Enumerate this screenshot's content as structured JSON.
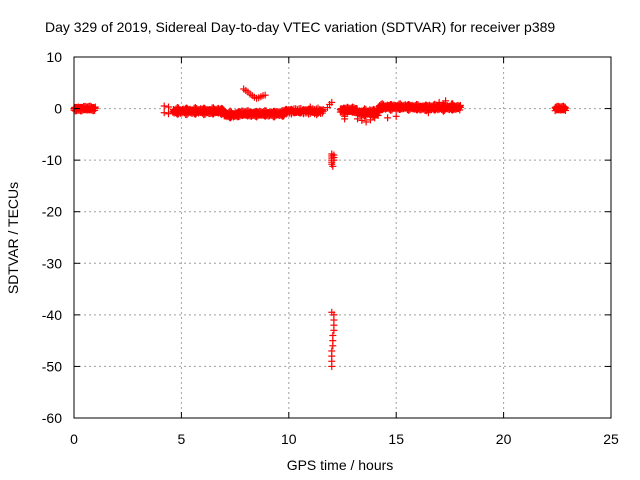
{
  "chart_data": {
    "type": "scatter",
    "title": "Day 329 of 2019, Sidereal Day-to-day VTEC variation (SDTVAR) for receiver p389",
    "xlabel": "GPS time / hours",
    "ylabel": "SDTVAR / TECUs",
    "xlim": [
      0,
      25
    ],
    "ylim": [
      -60,
      10
    ],
    "xticks": [
      0,
      5,
      10,
      15,
      20,
      25
    ],
    "yticks": [
      10,
      0,
      -10,
      -20,
      -30,
      -40,
      -50,
      -60
    ],
    "grid": true,
    "marker": "plus",
    "color": "#ff0000",
    "segments": [
      {
        "x0": 0.0,
        "x1": 1.0,
        "y": 0.0,
        "spread": 0.6,
        "step": 0.03
      },
      {
        "x0": 4.6,
        "x1": 7.0,
        "y": -0.5,
        "spread": 1.2,
        "step": 0.03
      },
      {
        "x0": 7.0,
        "x1": 7.6,
        "y": -1.2,
        "spread": 1.2,
        "step": 0.03
      },
      {
        "x0": 7.6,
        "x1": 9.8,
        "y": -1.0,
        "spread": 1.0,
        "step": 0.03
      },
      {
        "x0": 9.8,
        "x1": 11.6,
        "y": -0.5,
        "spread": 0.9,
        "step": 0.04
      },
      {
        "x0": 12.4,
        "x1": 13.2,
        "y": -0.3,
        "spread": 1.0,
        "step": 0.03
      },
      {
        "x0": 13.2,
        "x1": 14.2,
        "y": -0.8,
        "spread": 1.4,
        "step": 0.03
      },
      {
        "x0": 14.2,
        "x1": 15.8,
        "y": 0.3,
        "spread": 1.0,
        "step": 0.03
      },
      {
        "x0": 15.8,
        "x1": 18.0,
        "y": 0.2,
        "spread": 1.0,
        "step": 0.03
      },
      {
        "x0": 22.4,
        "x1": 22.9,
        "y": 0.0,
        "spread": 0.6,
        "step": 0.03
      }
    ],
    "points": [
      [
        4.2,
        0.5
      ],
      [
        4.2,
        -0.8
      ],
      [
        4.4,
        0.3
      ],
      [
        4.4,
        -1.0
      ],
      [
        7.9,
        3.8
      ],
      [
        8.0,
        3.5
      ],
      [
        8.1,
        3.2
      ],
      [
        8.2,
        2.8
      ],
      [
        8.3,
        2.5
      ],
      [
        8.4,
        2.2
      ],
      [
        8.5,
        2.0
      ],
      [
        8.6,
        2.1
      ],
      [
        8.7,
        2.3
      ],
      [
        8.8,
        2.5
      ],
      [
        8.9,
        2.6
      ],
      [
        11.0,
        0.3
      ],
      [
        11.1,
        -0.5
      ],
      [
        11.2,
        -1.0
      ],
      [
        11.3,
        -1.2
      ],
      [
        11.8,
        0.2
      ],
      [
        11.9,
        0.8
      ],
      [
        12.0,
        1.2
      ],
      [
        12.0,
        -8.8
      ],
      [
        12.0,
        -9.2
      ],
      [
        12.0,
        -9.6
      ],
      [
        12.0,
        -10.0
      ],
      [
        12.0,
        -10.4
      ],
      [
        12.0,
        -10.8
      ],
      [
        12.05,
        -11.2
      ],
      [
        12.1,
        -9.0
      ],
      [
        12.1,
        -9.5
      ],
      [
        12.1,
        -10.0
      ],
      [
        12.1,
        -40.0
      ],
      [
        12.1,
        -41.0
      ],
      [
        12.1,
        -42.0
      ],
      [
        12.1,
        -43.0
      ],
      [
        12.05,
        -44.0
      ],
      [
        12.05,
        -45.0
      ],
      [
        12.05,
        -46.0
      ],
      [
        12.0,
        -47.0
      ],
      [
        12.0,
        -48.0
      ],
      [
        12.0,
        -49.0
      ],
      [
        12.0,
        -50.0
      ],
      [
        12.0,
        -39.5
      ],
      [
        12.6,
        -1.5
      ],
      [
        12.6,
        -2.0
      ],
      [
        13.2,
        -2.0
      ],
      [
        13.4,
        -2.3
      ],
      [
        13.6,
        -2.6
      ],
      [
        13.8,
        -2.2
      ],
      [
        14.0,
        -1.8
      ],
      [
        14.6,
        -1.8
      ],
      [
        15.0,
        -1.5
      ],
      [
        16.5,
        -0.8
      ],
      [
        17.2,
        -0.5
      ],
      [
        17.0,
        1.2
      ],
      [
        17.3,
        1.5
      ],
      [
        17.6,
        1.0
      ]
    ]
  }
}
